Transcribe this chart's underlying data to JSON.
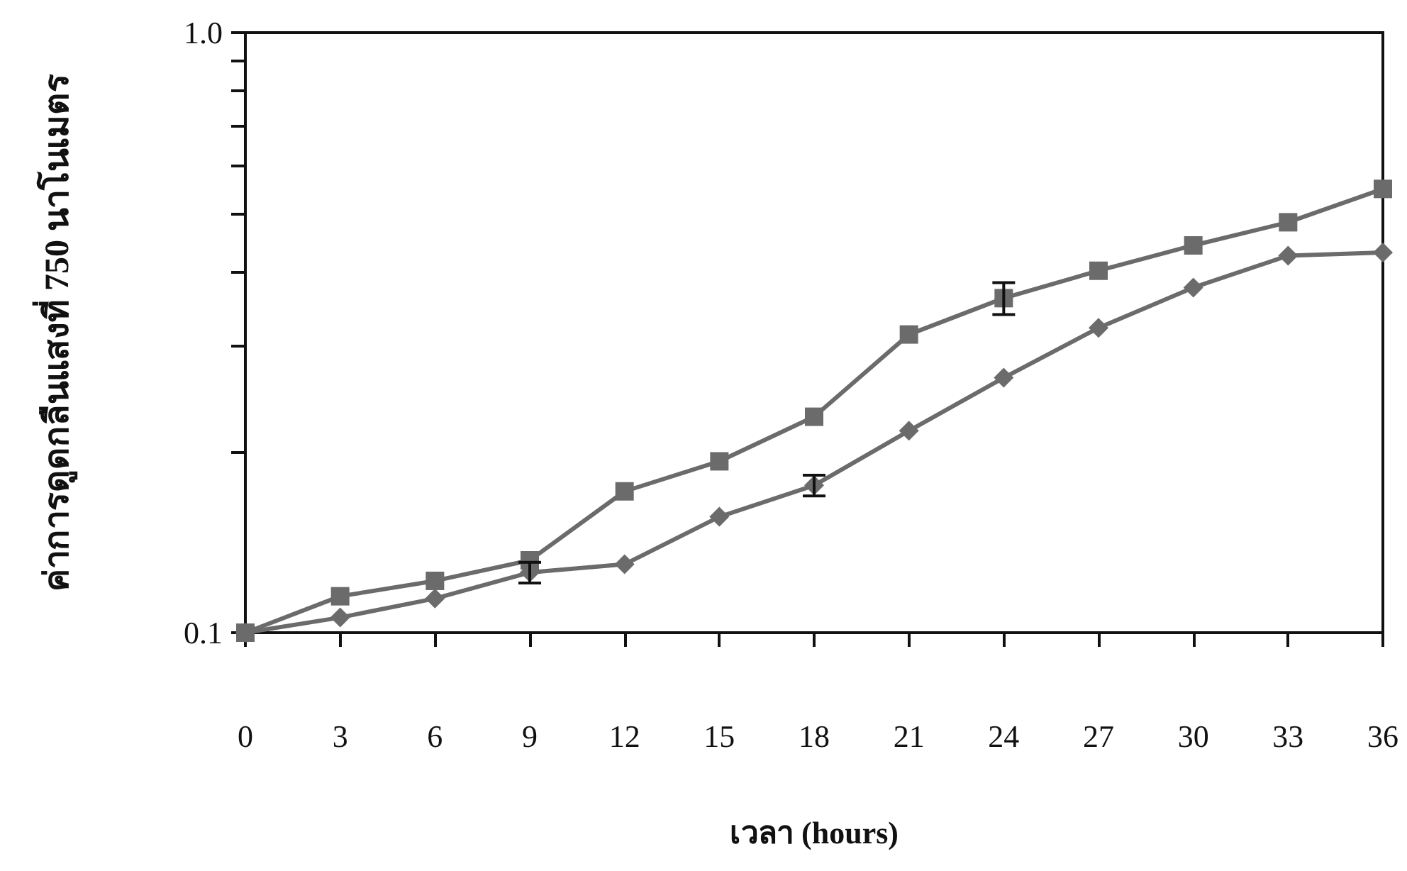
{
  "chart_data": {
    "type": "line",
    "xlabel": "เวลา (hours)",
    "ylabel": "ค่าการดูดกลืนแสงที่ 750 นาโนเมตร",
    "x": [
      0,
      3,
      6,
      9,
      12,
      15,
      18,
      21,
      24,
      27,
      30,
      33,
      36
    ],
    "series": [
      {
        "color": "#6b6b6b",
        "marker": "diamond",
        "values": [
          0.1,
          0.106,
          0.114,
          0.126,
          0.13,
          0.156,
          0.176,
          0.217,
          0.266,
          0.322,
          0.376,
          0.425,
          0.43
        ],
        "errors": [
          null,
          null,
          null,
          0.005,
          null,
          null,
          0.007,
          null,
          null,
          null,
          null,
          null,
          null
        ]
      },
      {
        "color": "#6b6b6b",
        "marker": "square",
        "values": [
          0.1,
          0.115,
          0.122,
          0.132,
          0.172,
          0.193,
          0.229,
          0.314,
          0.361,
          0.401,
          0.442,
          0.483,
          0.549
        ],
        "errors": [
          null,
          null,
          null,
          null,
          null,
          null,
          null,
          null,
          0.022,
          null,
          null,
          null,
          null
        ]
      }
    ],
    "xlim": [
      0,
      36
    ],
    "xticks": [
      0,
      3,
      6,
      9,
      12,
      15,
      18,
      21,
      24,
      27,
      30,
      33,
      36
    ],
    "ylim": [
      0.1,
      1
    ],
    "log": "y",
    "yticks": [
      0.1,
      {
        "value": 0.2,
        "label": null
      },
      {
        "value": 0.3,
        "label": null
      },
      {
        "value": 0.4,
        "label": null
      },
      {
        "value": 0.5,
        "label": null
      },
      {
        "value": 0.6,
        "label": null
      },
      {
        "value": 0.7,
        "label": null
      },
      {
        "value": 0.8,
        "label": null
      },
      {
        "value": 0.9,
        "label": null
      },
      {
        "value": 1,
        "label": "1.0"
      }
    ],
    "grid": false,
    "line_style": "solid"
  }
}
